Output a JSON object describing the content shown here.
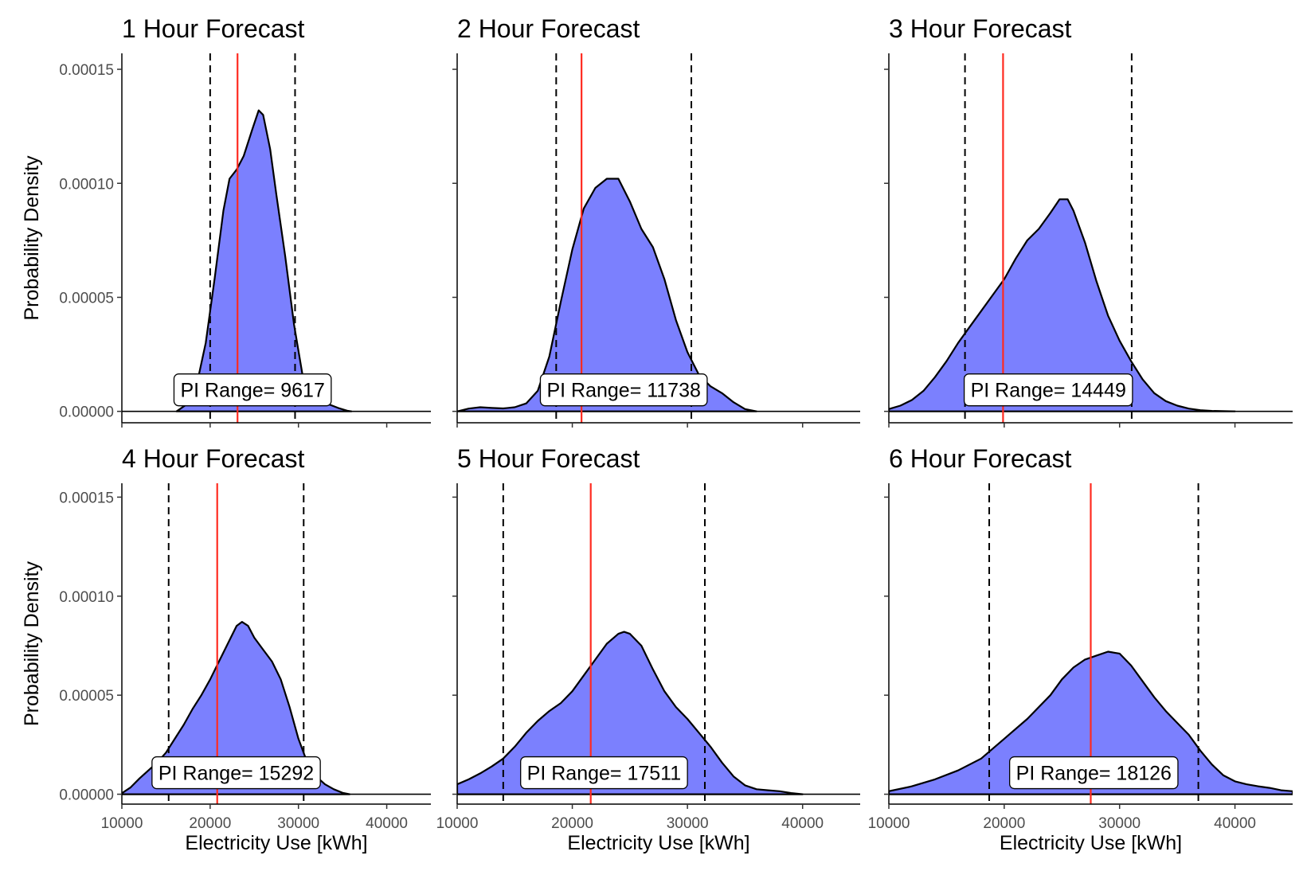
{
  "chart_data": {
    "type": "density",
    "facets": [
      {
        "title": "1 Hour Forecast",
        "pi_label": "PI Range= 9617",
        "actual": 23100,
        "lower": 20000,
        "upper": 29617,
        "density": [
          [
            16200,
            0.0
          ],
          [
            17500,
            3.5e-06
          ],
          [
            18500,
            1.2e-05
          ],
          [
            19500,
            3e-05
          ],
          [
            20500,
            5.8e-05
          ],
          [
            21500,
            8.8e-05
          ],
          [
            22200,
            0.000102
          ],
          [
            23000,
            0.000106
          ],
          [
            23800,
            0.000112
          ],
          [
            24800,
            0.000124
          ],
          [
            25500,
            0.000132
          ],
          [
            26000,
            0.00013
          ],
          [
            26800,
            0.000115
          ],
          [
            27500,
            9.5e-05
          ],
          [
            28500,
            6.8e-05
          ],
          [
            29500,
            3.8e-05
          ],
          [
            30500,
            1.5e-05
          ],
          [
            31500,
            6e-06
          ],
          [
            32500,
            3e-06
          ],
          [
            33500,
            3e-06
          ],
          [
            34500,
            1.5e-06
          ],
          [
            35500,
            3e-07
          ],
          [
            36000,
            0.0
          ]
        ]
      },
      {
        "title": "2 Hour Forecast",
        "pi_label": "PI Range= 11738",
        "actual": 20800,
        "lower": 18600,
        "upper": 30338,
        "density": [
          [
            10000,
            0.0
          ],
          [
            11000,
            1.2e-06
          ],
          [
            12000,
            1.8e-06
          ],
          [
            13000,
            1.5e-06
          ],
          [
            14000,
            1.3e-06
          ],
          [
            15000,
            1.8e-06
          ],
          [
            16000,
            3.5e-06
          ],
          [
            17000,
            9e-06
          ],
          [
            18000,
            2.4e-05
          ],
          [
            19000,
            4.8e-05
          ],
          [
            20000,
            7.1e-05
          ],
          [
            21000,
            8.9e-05
          ],
          [
            22000,
            9.8e-05
          ],
          [
            23000,
            0.000102
          ],
          [
            24000,
            0.000102
          ],
          [
            25000,
            9.2e-05
          ],
          [
            26000,
            8e-05
          ],
          [
            27000,
            7.2e-05
          ],
          [
            28000,
            5.8e-05
          ],
          [
            29000,
            4e-05
          ],
          [
            30000,
            2.6e-05
          ],
          [
            31000,
            1.6e-05
          ],
          [
            32000,
            1.1e-05
          ],
          [
            33000,
            8e-06
          ],
          [
            34000,
            4e-06
          ],
          [
            35000,
            1e-06
          ],
          [
            36000,
            0.0
          ]
        ]
      },
      {
        "title": "3 Hour Forecast",
        "pi_label": "PI Range= 14449",
        "actual": 19900,
        "lower": 16600,
        "upper": 31049,
        "density": [
          [
            10000,
            1e-06
          ],
          [
            11000,
            2.5e-06
          ],
          [
            12000,
            5e-06
          ],
          [
            13000,
            9e-06
          ],
          [
            14000,
            1.5e-05
          ],
          [
            15000,
            2.2e-05
          ],
          [
            16000,
            3e-05
          ],
          [
            17000,
            3.7e-05
          ],
          [
            18000,
            4.4e-05
          ],
          [
            19000,
            5.1e-05
          ],
          [
            20000,
            5.8e-05
          ],
          [
            21000,
            6.7e-05
          ],
          [
            22000,
            7.5e-05
          ],
          [
            23000,
            8e-05
          ],
          [
            24000,
            8.7e-05
          ],
          [
            24800,
            9.3e-05
          ],
          [
            25500,
            9.3e-05
          ],
          [
            26000,
            8.8e-05
          ],
          [
            27000,
            7.4e-05
          ],
          [
            28000,
            5.7e-05
          ],
          [
            29000,
            4.2e-05
          ],
          [
            30000,
            3.1e-05
          ],
          [
            31000,
            2.2e-05
          ],
          [
            32000,
            1.4e-05
          ],
          [
            33000,
            8e-06
          ],
          [
            34000,
            4.5e-06
          ],
          [
            35000,
            2.5e-06
          ],
          [
            36000,
            1.2e-06
          ],
          [
            37000,
            5e-07
          ],
          [
            38000,
            2e-07
          ],
          [
            40000,
            0.0
          ]
        ]
      },
      {
        "title": "4 Hour Forecast",
        "pi_label": "PI Range= 15292",
        "actual": 20800,
        "lower": 15300,
        "upper": 30592,
        "density": [
          [
            10000,
            5e-07
          ],
          [
            11000,
            3.5e-06
          ],
          [
            12000,
            8e-06
          ],
          [
            13000,
            1.2e-05
          ],
          [
            14000,
            1.6e-05
          ],
          [
            15000,
            2.1e-05
          ],
          [
            16000,
            2.8e-05
          ],
          [
            17000,
            3.5e-05
          ],
          [
            18000,
            4.3e-05
          ],
          [
            19000,
            5e-05
          ],
          [
            20000,
            5.8e-05
          ],
          [
            21000,
            6.7e-05
          ],
          [
            22000,
            7.6e-05
          ],
          [
            23000,
            8.5e-05
          ],
          [
            23600,
            8.7e-05
          ],
          [
            24300,
            8.5e-05
          ],
          [
            25000,
            7.9e-05
          ],
          [
            26000,
            7.3e-05
          ],
          [
            27000,
            6.7e-05
          ],
          [
            28000,
            5.8e-05
          ],
          [
            29000,
            4.4e-05
          ],
          [
            30000,
            2.8e-05
          ],
          [
            31000,
            1.6e-05
          ],
          [
            32000,
            9e-06
          ],
          [
            33000,
            5e-06
          ],
          [
            34000,
            2.5e-06
          ],
          [
            35000,
            7e-07
          ],
          [
            35800,
            0.0
          ]
        ]
      },
      {
        "title": "5 Hour Forecast",
        "pi_label": "PI Range= 17511",
        "actual": 21600,
        "lower": 14000,
        "upper": 31511,
        "density": [
          [
            10000,
            5e-06
          ],
          [
            11000,
            7.5e-06
          ],
          [
            12000,
            1.05e-05
          ],
          [
            13000,
            1.4e-05
          ],
          [
            14000,
            1.8e-05
          ],
          [
            15000,
            2.4e-05
          ],
          [
            16000,
            3.1e-05
          ],
          [
            17000,
            3.7e-05
          ],
          [
            18000,
            4.2e-05
          ],
          [
            19000,
            4.6e-05
          ],
          [
            20000,
            5.2e-05
          ],
          [
            21000,
            6e-05
          ],
          [
            22000,
            6.8e-05
          ],
          [
            23000,
            7.6e-05
          ],
          [
            24000,
            8.1e-05
          ],
          [
            24500,
            8.2e-05
          ],
          [
            25000,
            8.1e-05
          ],
          [
            26000,
            7.5e-05
          ],
          [
            27000,
            6.3e-05
          ],
          [
            28000,
            5.2e-05
          ],
          [
            29000,
            4.4e-05
          ],
          [
            30000,
            3.8e-05
          ],
          [
            31000,
            3.1e-05
          ],
          [
            32000,
            2.4e-05
          ],
          [
            33000,
            1.6e-05
          ],
          [
            34000,
            9e-06
          ],
          [
            35000,
            4.5e-06
          ],
          [
            36000,
            2.5e-06
          ],
          [
            37000,
            2e-06
          ],
          [
            38000,
            1.5e-06
          ],
          [
            39000,
            6e-07
          ],
          [
            40000,
            0.0
          ]
        ]
      },
      {
        "title": "6 Hour Forecast",
        "pi_label": "PI Range= 18126",
        "actual": 27500,
        "lower": 18700,
        "upper": 36826,
        "density": [
          [
            10000,
            1.5e-06
          ],
          [
            12000,
            4e-06
          ],
          [
            14000,
            7.5e-06
          ],
          [
            16000,
            1.2e-05
          ],
          [
            18000,
            1.8e-05
          ],
          [
            20000,
            2.8e-05
          ],
          [
            22000,
            3.8e-05
          ],
          [
            24000,
            5e-05
          ],
          [
            25000,
            5.8e-05
          ],
          [
            26000,
            6.4e-05
          ],
          [
            27000,
            6.8e-05
          ],
          [
            28000,
            7e-05
          ],
          [
            29000,
            7.2e-05
          ],
          [
            30000,
            7.1e-05
          ],
          [
            31000,
            6.5e-05
          ],
          [
            32000,
            5.7e-05
          ],
          [
            33000,
            4.9e-05
          ],
          [
            34000,
            4.2e-05
          ],
          [
            35000,
            3.6e-05
          ],
          [
            36000,
            3e-05
          ],
          [
            37000,
            2.2e-05
          ],
          [
            38000,
            1.5e-05
          ],
          [
            39000,
            9.5e-06
          ],
          [
            40000,
            6.5e-06
          ],
          [
            41000,
            5e-06
          ],
          [
            42000,
            4e-06
          ],
          [
            43000,
            3.2e-06
          ],
          [
            44000,
            2e-06
          ],
          [
            45000,
            1.5e-06
          ]
        ]
      }
    ],
    "xlabel": "Electricity Use [kWh]",
    "ylabel": "Probability Density",
    "xlim": [
      10000,
      45000
    ],
    "ylim": [
      -5e-06,
      0.000157
    ],
    "xticks": [
      10000,
      20000,
      30000,
      40000
    ],
    "xtick_labels": [
      "10000",
      "20000",
      "30000",
      "40000"
    ],
    "yticks": [
      0,
      5e-05,
      0.0001,
      0.00015
    ],
    "ytick_labels": [
      "0.00000",
      "0.00005",
      "0.00010",
      "0.00015"
    ],
    "fill_color": "#7b80fe",
    "actual_line_color": "#ff2b20",
    "interval_line_color": "#000000"
  }
}
